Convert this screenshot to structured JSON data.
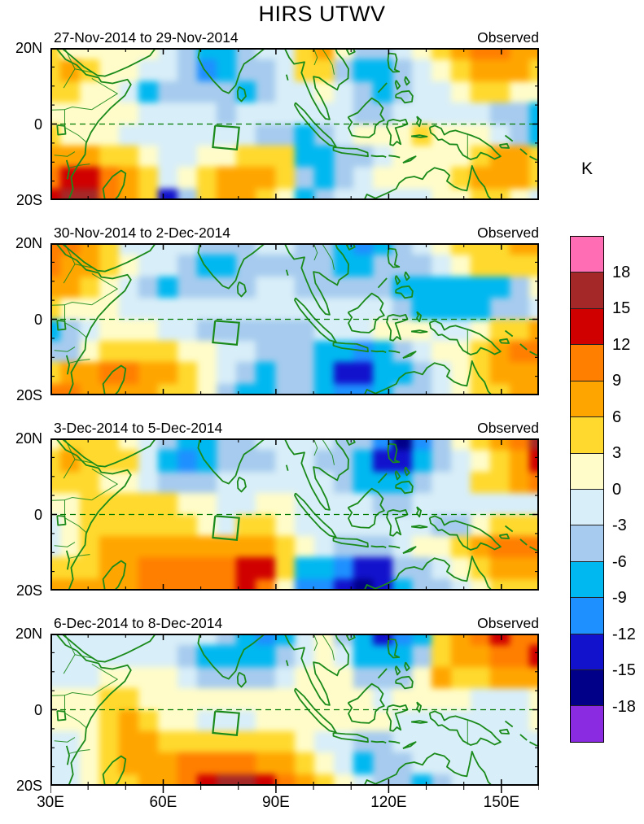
{
  "figure_title": "HIRS UTWV",
  "unit_label": "K",
  "axes": {
    "x_tick_labels": [
      "30E",
      "60E",
      "90E",
      "120E",
      "150E"
    ],
    "y_tick_labels": [
      "20N",
      "0",
      "20S"
    ]
  },
  "colorbar": {
    "tick_labels": [
      "18",
      "15",
      "12",
      "9",
      "6",
      "3",
      "0",
      "-3",
      "-6",
      "-9",
      "-12",
      "-15",
      "-18"
    ]
  },
  "chart_data": {
    "type": "heatmap",
    "title": "HIRS UTWV",
    "units": "K",
    "lon_range": [
      30,
      160
    ],
    "lat_range": [
      -20,
      20
    ],
    "x_ticks_deg_east": [
      30,
      60,
      90,
      120,
      150
    ],
    "x_minor_ticks_deg_east": [
      40,
      50,
      70,
      80,
      100,
      110,
      130,
      140,
      160
    ],
    "y_ticks_deg_north": [
      20,
      0,
      -20
    ],
    "y_minor_ticks_deg_north": [
      15,
      10,
      5,
      -5,
      -10,
      -15
    ],
    "legend_position": "right",
    "contour_levels": [
      18,
      15,
      12,
      9,
      6,
      3,
      0,
      -3,
      -6,
      -9,
      -12,
      -15,
      -18
    ],
    "colors_top_to_bottom": [
      "#ff6eb4",
      "#a52828",
      "#d00000",
      "#ff7f00",
      "#ffa500",
      "#ffd92e",
      "#fffcc9",
      "#d8eef8",
      "#a6cbee",
      "#00b8f0",
      "#1e90ff",
      "#1212cd",
      "#000089",
      "#8a2be2"
    ],
    "coast_color": "#1a8a1a",
    "equator_line": "dashed",
    "region_box_lon_lat": [
      73.2,
      80.2,
      -6.7,
      -0.4
    ],
    "grid_lon_step_deg": 5,
    "grid_lat_step_deg": 5,
    "panels": [
      {
        "title": "27-Nov-2014 to 29-Nov-2014",
        "label": "Observed",
        "anomaly_grid_K": [
          [
            4.5,
            1.5,
            1.5,
            1.5,
            1.5,
            1.5,
            -1.5,
            -4.5,
            -7.5,
            -7.5,
            -4.5,
            -1.5,
            -1.5,
            4.5,
            7.5,
            1.5,
            -4.5,
            -4.5,
            -1.5,
            1.5,
            4.5,
            7.5,
            10.5,
            10.5,
            7.5,
            7.5
          ],
          [
            4.5,
            7.5,
            4.5,
            1.5,
            1.5,
            -1.5,
            -1.5,
            -4.5,
            -10.5,
            -7.5,
            -4.5,
            -4.5,
            -1.5,
            4.5,
            4.5,
            -4.5,
            -7.5,
            -7.5,
            -4.5,
            -1.5,
            1.5,
            4.5,
            7.5,
            7.5,
            7.5,
            4.5
          ],
          [
            4.5,
            4.5,
            1.5,
            1.5,
            -1.5,
            -7.5,
            -4.5,
            -4.5,
            -4.5,
            -4.5,
            -7.5,
            -4.5,
            -1.5,
            -1.5,
            1.5,
            -1.5,
            -4.5,
            -7.5,
            -4.5,
            -1.5,
            -1.5,
            1.5,
            4.5,
            4.5,
            1.5,
            1.5
          ],
          [
            1.5,
            1.5,
            1.5,
            1.5,
            1.5,
            -1.5,
            -1.5,
            -1.5,
            -1.5,
            -4.5,
            -1.5,
            -1.5,
            -1.5,
            -1.5,
            -1.5,
            -1.5,
            -4.5,
            -4.5,
            -1.5,
            -1.5,
            -1.5,
            -1.5,
            -1.5,
            -4.5,
            -4.5,
            -7.5
          ],
          [
            4.5,
            1.5,
            1.5,
            1.5,
            -1.5,
            -1.5,
            -1.5,
            -1.5,
            -1.5,
            -1.5,
            -1.5,
            -4.5,
            -4.5,
            -7.5,
            -4.5,
            -1.5,
            1.5,
            1.5,
            1.5,
            4.5,
            1.5,
            1.5,
            1.5,
            -1.5,
            -4.5,
            -7.5
          ],
          [
            7.5,
            7.5,
            7.5,
            4.5,
            4.5,
            1.5,
            -1.5,
            -1.5,
            1.5,
            1.5,
            4.5,
            4.5,
            4.5,
            -7.5,
            -7.5,
            -4.5,
            -4.5,
            -1.5,
            1.5,
            1.5,
            1.5,
            1.5,
            4.5,
            7.5,
            7.5,
            4.5
          ],
          [
            10.5,
            13.5,
            13.5,
            10.5,
            7.5,
            4.5,
            -1.5,
            1.5,
            4.5,
            7.5,
            7.5,
            7.5,
            4.5,
            -4.5,
            -7.5,
            -4.5,
            -1.5,
            1.5,
            1.5,
            1.5,
            1.5,
            4.5,
            7.5,
            7.5,
            7.5,
            4.5
          ],
          [
            13.5,
            16.5,
            16.5,
            10.5,
            7.5,
            4.5,
            -13.5,
            -4.5,
            4.5,
            7.5,
            7.5,
            4.5,
            1.5,
            -7.5,
            -4.5,
            -1.5,
            -1.5,
            -1.5,
            -1.5,
            -1.5,
            1.5,
            1.5,
            4.5,
            4.5,
            1.5,
            -1.5
          ]
        ]
      },
      {
        "title": "30-Nov-2014 to 2-Dec-2014",
        "label": "Observed",
        "anomaly_grid_K": [
          [
            10.5,
            10.5,
            7.5,
            4.5,
            -1.5,
            -1.5,
            -1.5,
            -1.5,
            -4.5,
            -4.5,
            -4.5,
            -1.5,
            -1.5,
            -4.5,
            -4.5,
            -7.5,
            -10.5,
            -7.5,
            -4.5,
            -1.5,
            1.5,
            4.5,
            4.5,
            4.5,
            7.5,
            7.5
          ],
          [
            10.5,
            7.5,
            7.5,
            4.5,
            1.5,
            -1.5,
            -1.5,
            -4.5,
            -7.5,
            -7.5,
            -4.5,
            -4.5,
            -4.5,
            -4.5,
            -4.5,
            -7.5,
            -7.5,
            -4.5,
            -4.5,
            -4.5,
            -1.5,
            1.5,
            4.5,
            4.5,
            4.5,
            4.5
          ],
          [
            7.5,
            7.5,
            4.5,
            1.5,
            -1.5,
            -4.5,
            -7.5,
            -4.5,
            -4.5,
            -4.5,
            -4.5,
            -1.5,
            -1.5,
            -4.5,
            -4.5,
            -4.5,
            -4.5,
            -4.5,
            -7.5,
            -7.5,
            -7.5,
            -7.5,
            -7.5,
            -7.5,
            -4.5,
            1.5
          ],
          [
            4.5,
            1.5,
            1.5,
            1.5,
            -1.5,
            -1.5,
            -1.5,
            -1.5,
            -1.5,
            -1.5,
            -1.5,
            -1.5,
            -1.5,
            -1.5,
            -1.5,
            -1.5,
            -1.5,
            -1.5,
            -4.5,
            -7.5,
            -7.5,
            -7.5,
            -7.5,
            -4.5,
            -4.5,
            -1.5
          ],
          [
            -7.5,
            -4.5,
            -1.5,
            1.5,
            1.5,
            1.5,
            -1.5,
            -1.5,
            -4.5,
            -4.5,
            -4.5,
            -4.5,
            -4.5,
            -4.5,
            -1.5,
            -1.5,
            -1.5,
            1.5,
            1.5,
            1.5,
            -1.5,
            -1.5,
            1.5,
            4.5,
            4.5,
            7.5
          ],
          [
            -4.5,
            -4.5,
            1.5,
            4.5,
            4.5,
            4.5,
            4.5,
            1.5,
            1.5,
            -1.5,
            -1.5,
            -4.5,
            -4.5,
            -4.5,
            -7.5,
            -7.5,
            -10.5,
            -7.5,
            -4.5,
            -1.5,
            1.5,
            1.5,
            4.5,
            7.5,
            10.5,
            10.5
          ],
          [
            4.5,
            7.5,
            7.5,
            10.5,
            10.5,
            7.5,
            7.5,
            4.5,
            1.5,
            -1.5,
            -4.5,
            -7.5,
            -4.5,
            -4.5,
            -7.5,
            -13.5,
            -13.5,
            -7.5,
            -7.5,
            -4.5,
            -1.5,
            1.5,
            4.5,
            7.5,
            7.5,
            7.5
          ],
          [
            10.5,
            10.5,
            7.5,
            7.5,
            7.5,
            7.5,
            4.5,
            4.5,
            1.5,
            -4.5,
            -7.5,
            -7.5,
            -4.5,
            -4.5,
            -7.5,
            -10.5,
            -10.5,
            -7.5,
            -4.5,
            -4.5,
            -1.5,
            1.5,
            4.5,
            4.5,
            7.5,
            7.5
          ]
        ]
      },
      {
        "title": "3-Dec-2014 to 5-Dec-2014",
        "label": "Observed",
        "anomaly_grid_K": [
          [
            1.5,
            4.5,
            4.5,
            4.5,
            1.5,
            -1.5,
            -4.5,
            -7.5,
            -7.5,
            -4.5,
            -4.5,
            -1.5,
            -1.5,
            -1.5,
            -1.5,
            -4.5,
            -4.5,
            -10.5,
            -16.5,
            -10.5,
            -4.5,
            1.5,
            4.5,
            7.5,
            10.5,
            16.5
          ],
          [
            4.5,
            7.5,
            4.5,
            4.5,
            4.5,
            -1.5,
            -7.5,
            -10.5,
            -7.5,
            -4.5,
            -4.5,
            -4.5,
            -1.5,
            -1.5,
            -4.5,
            -4.5,
            -7.5,
            -13.5,
            -13.5,
            -7.5,
            -4.5,
            -1.5,
            1.5,
            4.5,
            7.5,
            13.5
          ],
          [
            4.5,
            4.5,
            4.5,
            1.5,
            1.5,
            -1.5,
            -4.5,
            -4.5,
            -4.5,
            -1.5,
            -1.5,
            -1.5,
            -1.5,
            -1.5,
            -1.5,
            -4.5,
            -7.5,
            -7.5,
            -7.5,
            -4.5,
            -1.5,
            -1.5,
            4.5,
            4.5,
            7.5,
            10.5
          ],
          [
            1.5,
            1.5,
            4.5,
            4.5,
            4.5,
            4.5,
            4.5,
            1.5,
            1.5,
            -1.5,
            -1.5,
            1.5,
            1.5,
            -1.5,
            -1.5,
            -1.5,
            -1.5,
            -4.5,
            -4.5,
            -1.5,
            -1.5,
            -1.5,
            -1.5,
            -1.5,
            -1.5,
            -1.5
          ],
          [
            -1.5,
            1.5,
            4.5,
            4.5,
            4.5,
            4.5,
            4.5,
            4.5,
            1.5,
            -1.5,
            4.5,
            4.5,
            1.5,
            -1.5,
            -1.5,
            -1.5,
            -1.5,
            -1.5,
            -1.5,
            -1.5,
            -4.5,
            -4.5,
            1.5,
            4.5,
            4.5,
            4.5
          ],
          [
            -1.5,
            1.5,
            4.5,
            7.5,
            7.5,
            7.5,
            7.5,
            7.5,
            7.5,
            7.5,
            7.5,
            7.5,
            4.5,
            1.5,
            -1.5,
            -4.5,
            -4.5,
            -4.5,
            -1.5,
            1.5,
            1.5,
            4.5,
            7.5,
            10.5,
            10.5,
            10.5
          ],
          [
            4.5,
            4.5,
            4.5,
            7.5,
            7.5,
            10.5,
            10.5,
            10.5,
            10.5,
            10.5,
            13.5,
            13.5,
            4.5,
            -7.5,
            -7.5,
            -10.5,
            -13.5,
            -13.5,
            -4.5,
            -4.5,
            -1.5,
            1.5,
            4.5,
            7.5,
            7.5,
            7.5
          ],
          [
            7.5,
            7.5,
            7.5,
            7.5,
            7.5,
            10.5,
            10.5,
            10.5,
            10.5,
            10.5,
            13.5,
            10.5,
            1.5,
            -10.5,
            -10.5,
            -13.5,
            -16.5,
            -13.5,
            -7.5,
            -4.5,
            -4.5,
            -1.5,
            1.5,
            4.5,
            4.5,
            4.5
          ]
        ]
      },
      {
        "title": "6-Dec-2014 to 8-Dec-2014",
        "label": "Observed",
        "anomaly_grid_K": [
          [
            -1.5,
            -1.5,
            -1.5,
            -1.5,
            -1.5,
            -1.5,
            -1.5,
            -1.5,
            -1.5,
            -4.5,
            -7.5,
            -10.5,
            -7.5,
            -1.5,
            1.5,
            -4.5,
            -7.5,
            -13.5,
            -10.5,
            -7.5,
            4.5,
            7.5,
            10.5,
            13.5,
            10.5,
            10.5
          ],
          [
            -1.5,
            -1.5,
            -1.5,
            -1.5,
            -1.5,
            -1.5,
            -1.5,
            -4.5,
            -7.5,
            -7.5,
            -7.5,
            -7.5,
            -4.5,
            -1.5,
            1.5,
            -1.5,
            -7.5,
            -7.5,
            -7.5,
            -4.5,
            4.5,
            7.5,
            7.5,
            10.5,
            10.5,
            13.5
          ],
          [
            -1.5,
            -1.5,
            -1.5,
            1.5,
            1.5,
            1.5,
            1.5,
            -1.5,
            -4.5,
            -4.5,
            -4.5,
            -4.5,
            -1.5,
            1.5,
            1.5,
            1.5,
            -4.5,
            -4.5,
            -4.5,
            1.5,
            7.5,
            4.5,
            4.5,
            7.5,
            7.5,
            7.5
          ],
          [
            1.5,
            1.5,
            1.5,
            4.5,
            4.5,
            1.5,
            1.5,
            1.5,
            1.5,
            1.5,
            1.5,
            1.5,
            1.5,
            1.5,
            1.5,
            1.5,
            1.5,
            -1.5,
            1.5,
            1.5,
            1.5,
            1.5,
            -1.5,
            -1.5,
            -1.5,
            1.5
          ],
          [
            1.5,
            1.5,
            1.5,
            4.5,
            7.5,
            4.5,
            1.5,
            1.5,
            -1.5,
            -1.5,
            -1.5,
            1.5,
            1.5,
            1.5,
            1.5,
            1.5,
            1.5,
            1.5,
            -1.5,
            -1.5,
            -1.5,
            -1.5,
            -1.5,
            -1.5,
            -1.5,
            1.5
          ],
          [
            -1.5,
            -1.5,
            1.5,
            4.5,
            7.5,
            7.5,
            4.5,
            4.5,
            4.5,
            4.5,
            4.5,
            4.5,
            4.5,
            1.5,
            -1.5,
            -1.5,
            -4.5,
            -4.5,
            -1.5,
            -1.5,
            -1.5,
            -1.5,
            -1.5,
            -1.5,
            -1.5,
            -1.5
          ],
          [
            -1.5,
            -1.5,
            1.5,
            4.5,
            7.5,
            7.5,
            7.5,
            10.5,
            10.5,
            10.5,
            10.5,
            7.5,
            7.5,
            4.5,
            1.5,
            -1.5,
            -7.5,
            -4.5,
            -4.5,
            -1.5,
            -1.5,
            -1.5,
            -1.5,
            -1.5,
            -1.5,
            -1.5
          ],
          [
            -1.5,
            -1.5,
            1.5,
            4.5,
            4.5,
            7.5,
            7.5,
            10.5,
            13.5,
            16.5,
            16.5,
            13.5,
            10.5,
            7.5,
            4.5,
            1.5,
            -1.5,
            -4.5,
            -4.5,
            -7.5,
            -4.5,
            -1.5,
            -1.5,
            -1.5,
            -1.5,
            -1.5
          ]
        ]
      }
    ]
  }
}
